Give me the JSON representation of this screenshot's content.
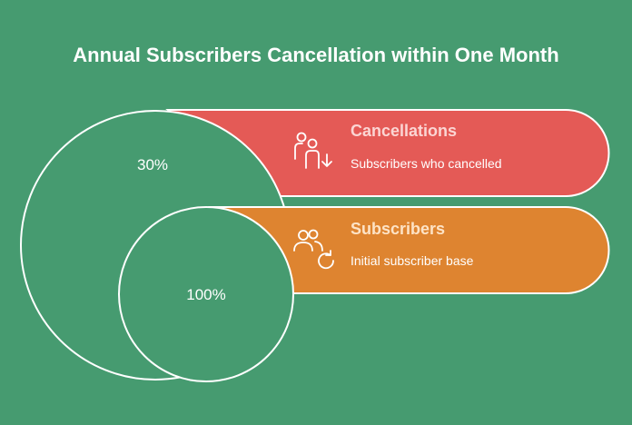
{
  "title": "Annual Subscribers Cancellation within One Month",
  "colors": {
    "background": "#469b70",
    "cancellations": "#e45a56",
    "subscribers": "#de8430",
    "cancellations_title": "#fbd5d3",
    "subscribers_title": "#fde3c6"
  },
  "segments": [
    {
      "id": "cancellations",
      "title": "Cancellations",
      "description": "Subscribers who cancelled",
      "value": "30%",
      "icon": "people-leaving-icon"
    },
    {
      "id": "subscribers",
      "title": "Subscribers",
      "description": "Initial subscriber base",
      "value": "100%",
      "icon": "group-refresh-icon"
    }
  ]
}
